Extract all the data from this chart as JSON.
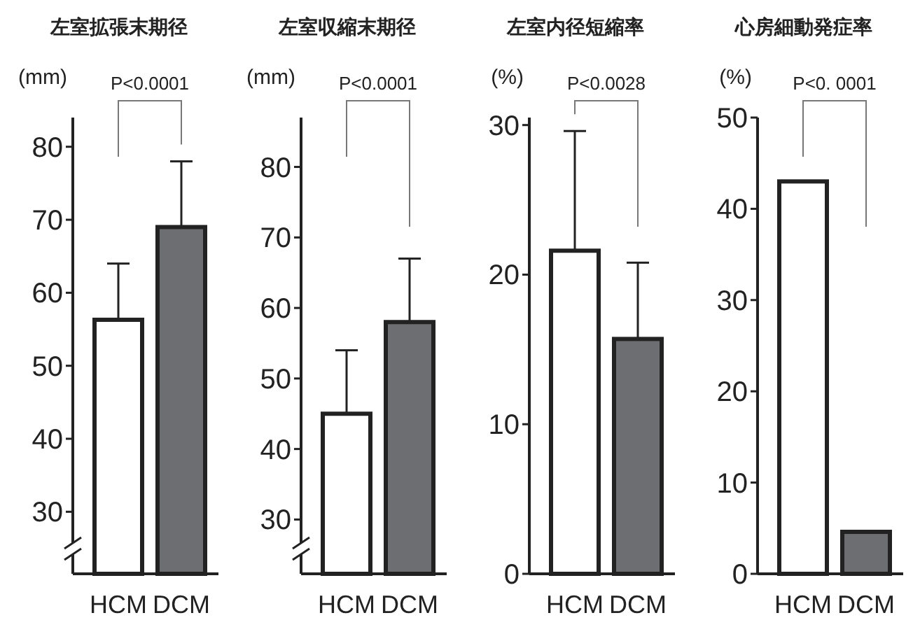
{
  "chart_data": [
    {
      "type": "bar",
      "title": "左室拡張末期径",
      "ylabel": "(mm)",
      "categories": [
        "HCM",
        "DCM"
      ],
      "values": [
        56.3,
        69
      ],
      "colors": [
        "#ffffff",
        "#6d6e71"
      ],
      "errors": [
        [
          56.3,
          64
        ],
        [
          69,
          78
        ]
      ],
      "ylim": [
        21.5,
        84
      ],
      "yticks": [
        30,
        40,
        50,
        60,
        70,
        80
      ],
      "annotations": [
        "P<0.0001"
      ]
    },
    {
      "type": "bar",
      "title": "左室収縮末期径",
      "ylabel": "(mm)",
      "categories": [
        "HCM",
        "DCM"
      ],
      "values": [
        45,
        58
      ],
      "colors": [
        "#ffffff",
        "#6d6e71"
      ],
      "errors": [
        [
          45,
          54
        ],
        [
          58,
          67
        ]
      ],
      "ylim": [
        22.3,
        87
      ],
      "yticks": [
        30,
        40,
        50,
        60,
        70,
        80
      ],
      "annotations": [
        "P<0.0001"
      ]
    },
    {
      "type": "bar",
      "title": "左室内径短縮率",
      "ylabel": "(%)",
      "categories": [
        "HCM",
        "DCM"
      ],
      "values": [
        21.6,
        15.7
      ],
      "colors": [
        "#ffffff",
        "#6d6e71"
      ],
      "errors": [
        [
          21.6,
          29.6
        ],
        [
          15.7,
          20.8
        ]
      ],
      "ylim": [
        0,
        30.5
      ],
      "yticks": [
        0,
        10,
        20,
        30
      ],
      "annotations": [
        "P<0.0028"
      ]
    },
    {
      "type": "bar",
      "title": "心房細動発症率",
      "ylabel": "(%)",
      "categories": [
        "HCM",
        "DCM"
      ],
      "values": [
        43,
        4.6
      ],
      "colors": [
        "#ffffff",
        "#6d6e71"
      ],
      "ylim": [
        0,
        50
      ],
      "yticks": [
        0,
        10,
        20,
        30,
        40,
        50
      ],
      "annotations": [
        "P<0. 0001"
      ]
    }
  ]
}
